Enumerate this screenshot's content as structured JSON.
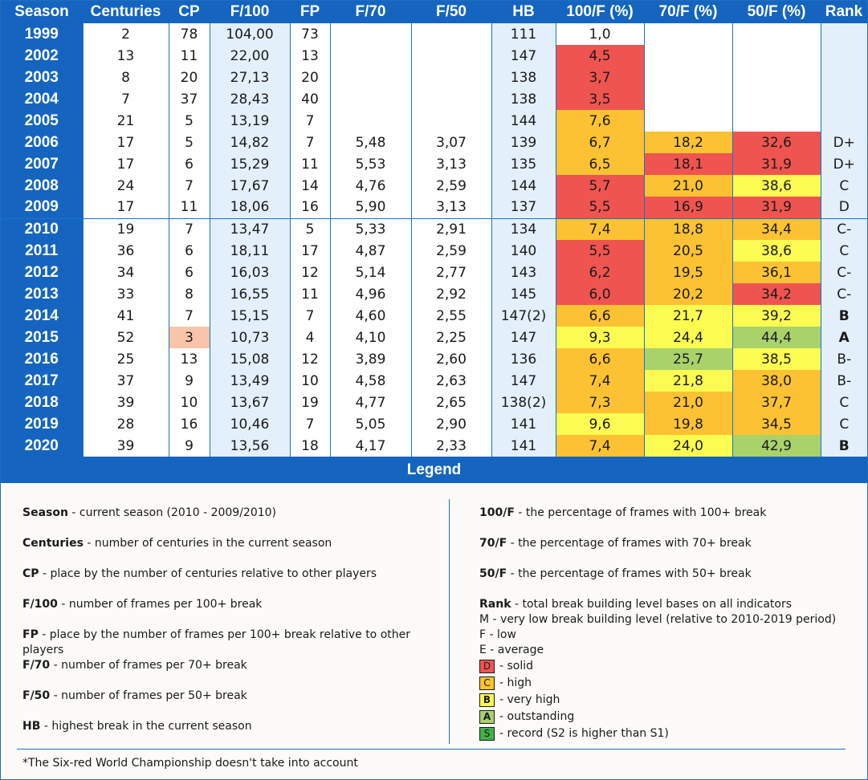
{
  "columns": [
    "Season",
    "Centuries",
    "CP",
    "F/100",
    "FP",
    "F/70",
    "F/50",
    "HB",
    "100/F (%)",
    "70/F (%)",
    "50/F (%)",
    "Rank"
  ],
  "rows": [
    {
      "season": "1999",
      "centuries": "2",
      "cp": "78",
      "f100": "104,00",
      "fp": "73",
      "f70": "",
      "f50": "",
      "hb": "111",
      "p100": "1,0",
      "p70": "",
      "p50": "",
      "rank": ""
    },
    {
      "season": "2002",
      "centuries": "13",
      "cp": "11",
      "f100": "22,00",
      "fp": "13",
      "f70": "",
      "f50": "",
      "hb": "147",
      "p100": "4,5",
      "p70": "",
      "p50": "",
      "rank": ""
    },
    {
      "season": "2003",
      "centuries": "8",
      "cp": "20",
      "f100": "27,13",
      "fp": "20",
      "f70": "",
      "f50": "",
      "hb": "138",
      "p100": "3,7",
      "p70": "",
      "p50": "",
      "rank": ""
    },
    {
      "season": "2004",
      "centuries": "7",
      "cp": "37",
      "f100": "28,43",
      "fp": "40",
      "f70": "",
      "f50": "",
      "hb": "138",
      "p100": "3,5",
      "p70": "",
      "p50": "",
      "rank": ""
    },
    {
      "season": "2005",
      "centuries": "21",
      "cp": "5",
      "f100": "13,19",
      "fp": "7",
      "f70": "",
      "f50": "",
      "hb": "144",
      "p100": "7,6",
      "p70": "",
      "p50": "",
      "rank": ""
    },
    {
      "season": "2006",
      "centuries": "17",
      "cp": "5",
      "f100": "14,82",
      "fp": "7",
      "f70": "5,48",
      "f50": "3,07",
      "hb": "139",
      "p100": "6,7",
      "p70": "18,2",
      "p50": "32,6",
      "rank": "D+"
    },
    {
      "season": "2007",
      "centuries": "17",
      "cp": "6",
      "f100": "15,29",
      "fp": "11",
      "f70": "5,53",
      "f50": "3,13",
      "hb": "135",
      "p100": "6,5",
      "p70": "18,1",
      "p50": "31,9",
      "rank": "D+"
    },
    {
      "season": "2008",
      "centuries": "24",
      "cp": "7",
      "f100": "17,67",
      "fp": "14",
      "f70": "4,76",
      "f50": "2,59",
      "hb": "144",
      "p100": "5,7",
      "p70": "21,0",
      "p50": "38,6",
      "rank": "C"
    },
    {
      "season": "2009",
      "centuries": "17",
      "cp": "11",
      "f100": "18,06",
      "fp": "16",
      "f70": "5,90",
      "f50": "3,13",
      "hb": "137",
      "p100": "5,5",
      "p70": "16,9",
      "p50": "31,9",
      "rank": "D"
    },
    {
      "season": "2010",
      "centuries": "19",
      "cp": "7",
      "f100": "13,47",
      "fp": "5",
      "f70": "5,33",
      "f50": "2,91",
      "hb": "134",
      "p100": "7,4",
      "p70": "18,8",
      "p50": "34,4",
      "rank": "C-"
    },
    {
      "season": "2011",
      "centuries": "36",
      "cp": "6",
      "f100": "18,11",
      "fp": "17",
      "f70": "4,87",
      "f50": "2,59",
      "hb": "140",
      "p100": "5,5",
      "p70": "20,5",
      "p50": "38,6",
      "rank": "C"
    },
    {
      "season": "2012",
      "centuries": "34",
      "cp": "6",
      "f100": "16,03",
      "fp": "12",
      "f70": "5,14",
      "f50": "2,77",
      "hb": "143",
      "p100": "6,2",
      "p70": "19,5",
      "p50": "36,1",
      "rank": "C-"
    },
    {
      "season": "2013",
      "centuries": "33",
      "cp": "8",
      "f100": "16,55",
      "fp": "11",
      "f70": "4,96",
      "f50": "2,92",
      "hb": "145",
      "p100": "6,0",
      "p70": "20,2",
      "p50": "34,2",
      "rank": "C-"
    },
    {
      "season": "2014",
      "centuries": "41",
      "cp": "7",
      "f100": "15,15",
      "fp": "7",
      "f70": "4,60",
      "f50": "2,55",
      "hb": "147(2)",
      "p100": "6,6",
      "p70": "21,7",
      "p50": "39,2",
      "rank": "B"
    },
    {
      "season": "2015",
      "centuries": "52",
      "cp": "3",
      "f100": "10,73",
      "fp": "4",
      "f70": "4,10",
      "f50": "2,25",
      "hb": "147",
      "p100": "9,3",
      "p70": "24,4",
      "p50": "44,4",
      "rank": "A"
    },
    {
      "season": "2016",
      "centuries": "25",
      "cp": "13",
      "f100": "15,08",
      "fp": "12",
      "f70": "3,89",
      "f50": "2,60",
      "hb": "136",
      "p100": "6,6",
      "p70": "25,7",
      "p50": "38,5",
      "rank": "B-"
    },
    {
      "season": "2017",
      "centuries": "37",
      "cp": "9",
      "f100": "13,49",
      "fp": "10",
      "f70": "4,58",
      "f50": "2,63",
      "hb": "147",
      "p100": "7,4",
      "p70": "21,8",
      "p50": "38,0",
      "rank": "B-"
    },
    {
      "season": "2018",
      "centuries": "39",
      "cp": "10",
      "f100": "13,67",
      "fp": "19",
      "f70": "4,77",
      "f50": "2,65",
      "hb": "138(2)",
      "p100": "7,3",
      "p70": "21,0",
      "p50": "37,7",
      "rank": "C"
    },
    {
      "season": "2019",
      "centuries": "28",
      "cp": "16",
      "f100": "10,46",
      "fp": "7",
      "f70": "5,05",
      "f50": "2,90",
      "hb": "141",
      "p100": "9,6",
      "p70": "19,8",
      "p50": "34,5",
      "rank": "C"
    },
    {
      "season": "2020",
      "centuries": "39",
      "cp": "9",
      "f100": "13,56",
      "fp": "18",
      "f70": "4,17",
      "f50": "2,33",
      "hb": "141",
      "p100": "7,4",
      "p70": "24,0",
      "p50": "42,9",
      "rank": "B"
    }
  ],
  "colors": {
    "header_blue": "#1565c0",
    "red": "#f05450",
    "orange": "#fcc233",
    "yellow": "#fbfb52",
    "light_green": "#a9d26b",
    "green": "#3fb24a",
    "pink": "#f9c5a8",
    "red_text": "#e8262b"
  },
  "legend": {
    "title": "Legend",
    "left": [
      {
        "term": "Season",
        "desc": " - current season (2010 - 2009/2010)"
      },
      {
        "term": "Centuries",
        "desc": " - number of centuries in the current season"
      },
      {
        "term": "CP",
        "desc": " - place by the number of centuries relative to other players"
      },
      {
        "term": "F/100",
        "desc": " - number of frames per 100+ break"
      },
      {
        "term": "FP",
        "desc": " - place by the number of frames per 100+ break relative to other players"
      },
      {
        "term": "F/70",
        "desc": " - number of frames per 70+ break"
      },
      {
        "term": "F/50",
        "desc": " - number of frames per 50+ break"
      },
      {
        "term": "HB",
        "desc": " - highest break in the current season"
      }
    ],
    "right": [
      {
        "term": "100/F",
        "desc": " - the percentage of frames with 100+ break"
      },
      {
        "term": "70/F",
        "desc": " - the percentage of frames with 70+ break"
      },
      {
        "term": "50/F",
        "desc": " - the percentage of frames with 50+ break"
      }
    ],
    "rank_term": "Rank",
    "rank_desc": " - total break building level bases on all indicators",
    "rank_levels": [
      "M - very low break building level (relative to 2010-2019 period)",
      "F - low",
      "E - average"
    ],
    "swatches": [
      {
        "letter": "D",
        "label": " - solid"
      },
      {
        "letter": "C",
        "label": " - high"
      },
      {
        "letter": "B",
        "label": " - very high"
      },
      {
        "letter": "A",
        "label": " - outstanding"
      },
      {
        "letter": "S",
        "label": " - record (S2 is higher than S1)"
      }
    ],
    "footnote": "*The Six-red World Championship doesn't take into account"
  }
}
